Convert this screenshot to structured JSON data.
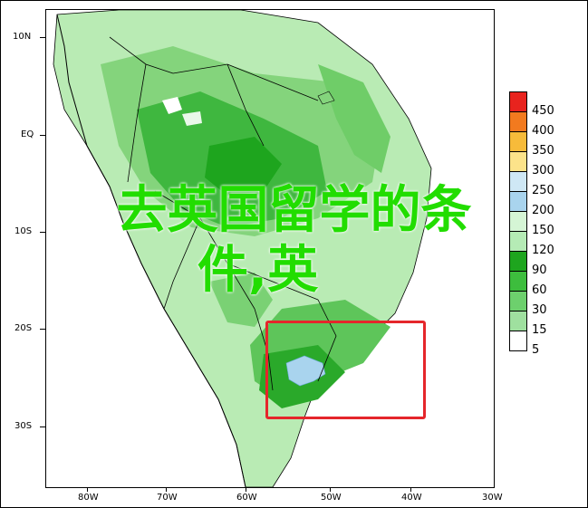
{
  "overlay": {
    "line1": "去英国留学的条",
    "line2": "件,英"
  },
  "axes": {
    "y_labels": [
      "10N",
      "EQ",
      "10S",
      "20S",
      "30S"
    ],
    "x_labels": [
      "80W",
      "70W",
      "60W",
      "50W",
      "40W",
      "30W"
    ]
  },
  "legend": {
    "labels": [
      "450",
      "400",
      "350",
      "300",
      "250",
      "200",
      "150",
      "120",
      "90",
      "60",
      "30",
      "15",
      "5"
    ],
    "colors": [
      "#e8231e",
      "#f27a1f",
      "#f7bb3a",
      "#fce38a",
      "#cfe8f5",
      "#a9d4ee",
      "#d5f5d5",
      "#b5ebb5",
      "#1ea51e",
      "#3dbd3d",
      "#6dd06d",
      "#9fe09f",
      "#ffffff"
    ]
  },
  "colors": {
    "overlay_text": "#22dd00",
    "highlight_box": "#e5262b"
  }
}
